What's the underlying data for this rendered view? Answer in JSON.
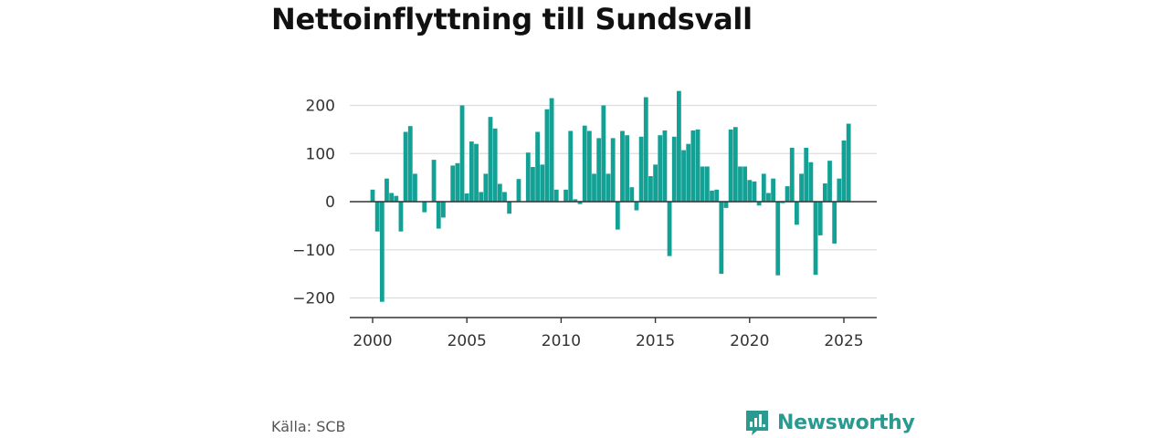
{
  "header": {
    "title": "Nettoinflyttning till Sundsvall"
  },
  "footer": {
    "source": "Källa: SCB",
    "brand": "Newsworthy"
  },
  "colors": {
    "bar": "#13a196",
    "grid": "#dddddd",
    "axis": "#333333",
    "brand": "#2a9a91"
  },
  "chart_data": {
    "type": "bar",
    "title": "Nettoinflyttning till Sundsvall",
    "xlabel": "",
    "ylabel": "",
    "x_ticks": [
      "2000",
      "2005",
      "2010",
      "2015",
      "2020",
      "2025"
    ],
    "y_ticks": [
      "−200",
      "−100",
      "0",
      "100",
      "200"
    ],
    "ylim": [
      -240,
      240
    ],
    "xlim": [
      1999.5,
      2027.0
    ],
    "grid": true,
    "legend": "none",
    "series": [
      {
        "points": [
          {
            "x": 2000.0,
            "y": 25
          },
          {
            "x": 2000.25,
            "y": -62
          },
          {
            "x": 2000.5,
            "y": -208
          },
          {
            "x": 2000.75,
            "y": 48
          },
          {
            "x": 2001.0,
            "y": 18
          },
          {
            "x": 2001.25,
            "y": 12
          },
          {
            "x": 2001.5,
            "y": -62
          },
          {
            "x": 2001.75,
            "y": 145
          },
          {
            "x": 2002.0,
            "y": 157
          },
          {
            "x": 2002.25,
            "y": 58
          },
          {
            "x": 2002.75,
            "y": -22
          },
          {
            "x": 2003.25,
            "y": 87
          },
          {
            "x": 2003.5,
            "y": -56
          },
          {
            "x": 2003.75,
            "y": -33
          },
          {
            "x": 2004.25,
            "y": 75
          },
          {
            "x": 2004.5,
            "y": 80
          },
          {
            "x": 2004.75,
            "y": 200
          },
          {
            "x": 2005.0,
            "y": 17
          },
          {
            "x": 2005.25,
            "y": 125
          },
          {
            "x": 2005.5,
            "y": 120
          },
          {
            "x": 2005.75,
            "y": 20
          },
          {
            "x": 2006.0,
            "y": 58
          },
          {
            "x": 2006.25,
            "y": 176
          },
          {
            "x": 2006.5,
            "y": 152
          },
          {
            "x": 2006.75,
            "y": 37
          },
          {
            "x": 2007.0,
            "y": 20
          },
          {
            "x": 2007.25,
            "y": -25
          },
          {
            "x": 2007.75,
            "y": 47
          },
          {
            "x": 2008.25,
            "y": 102
          },
          {
            "x": 2008.5,
            "y": 72
          },
          {
            "x": 2008.75,
            "y": 145
          },
          {
            "x": 2009.0,
            "y": 77
          },
          {
            "x": 2009.25,
            "y": 192
          },
          {
            "x": 2009.5,
            "y": 215
          },
          {
            "x": 2009.75,
            "y": 25
          },
          {
            "x": 2010.25,
            "y": 25
          },
          {
            "x": 2010.5,
            "y": 147
          },
          {
            "x": 2010.75,
            "y": 5
          },
          {
            "x": 2011.0,
            "y": -5
          },
          {
            "x": 2011.25,
            "y": 158
          },
          {
            "x": 2011.5,
            "y": 147
          },
          {
            "x": 2011.75,
            "y": 58
          },
          {
            "x": 2012.0,
            "y": 132
          },
          {
            "x": 2012.25,
            "y": 200
          },
          {
            "x": 2012.5,
            "y": 58
          },
          {
            "x": 2012.75,
            "y": 132
          },
          {
            "x": 2013.0,
            "y": -58
          },
          {
            "x": 2013.25,
            "y": 147
          },
          {
            "x": 2013.5,
            "y": 138
          },
          {
            "x": 2013.75,
            "y": 30
          },
          {
            "x": 2014.0,
            "y": -18
          },
          {
            "x": 2014.25,
            "y": 135
          },
          {
            "x": 2014.5,
            "y": 217
          },
          {
            "x": 2014.75,
            "y": 53
          },
          {
            "x": 2015.0,
            "y": 77
          },
          {
            "x": 2015.25,
            "y": 138
          },
          {
            "x": 2015.5,
            "y": 148
          },
          {
            "x": 2015.75,
            "y": -113
          },
          {
            "x": 2016.0,
            "y": 135
          },
          {
            "x": 2016.25,
            "y": 230
          },
          {
            "x": 2016.5,
            "y": 107
          },
          {
            "x": 2016.75,
            "y": 120
          },
          {
            "x": 2017.0,
            "y": 148
          },
          {
            "x": 2017.25,
            "y": 150
          },
          {
            "x": 2017.5,
            "y": 73
          },
          {
            "x": 2017.75,
            "y": 73
          },
          {
            "x": 2018.0,
            "y": 23
          },
          {
            "x": 2018.25,
            "y": 25
          },
          {
            "x": 2018.5,
            "y": -150
          },
          {
            "x": 2018.75,
            "y": -13
          },
          {
            "x": 2019.0,
            "y": 150
          },
          {
            "x": 2019.25,
            "y": 155
          },
          {
            "x": 2019.5,
            "y": 73
          },
          {
            "x": 2019.75,
            "y": 73
          },
          {
            "x": 2020.0,
            "y": 45
          },
          {
            "x": 2020.25,
            "y": 42
          },
          {
            "x": 2020.5,
            "y": -8
          },
          {
            "x": 2020.75,
            "y": 58
          },
          {
            "x": 2021.0,
            "y": 18
          },
          {
            "x": 2021.25,
            "y": 48
          },
          {
            "x": 2021.5,
            "y": -153
          },
          {
            "x": 2021.75,
            "y": -3
          },
          {
            "x": 2022.0,
            "y": 32
          },
          {
            "x": 2022.25,
            "y": 112
          },
          {
            "x": 2022.5,
            "y": -48
          },
          {
            "x": 2022.75,
            "y": 58
          },
          {
            "x": 2023.0,
            "y": 112
          },
          {
            "x": 2023.25,
            "y": 82
          },
          {
            "x": 2023.5,
            "y": -152
          },
          {
            "x": 2023.75,
            "y": -70
          },
          {
            "x": 2024.0,
            "y": 38
          },
          {
            "x": 2024.25,
            "y": 85
          },
          {
            "x": 2024.5,
            "y": -87
          },
          {
            "x": 2024.75,
            "y": 48
          },
          {
            "x": 2025.0,
            "y": 127
          },
          {
            "x": 2025.25,
            "y": 162
          }
        ]
      }
    ]
  }
}
